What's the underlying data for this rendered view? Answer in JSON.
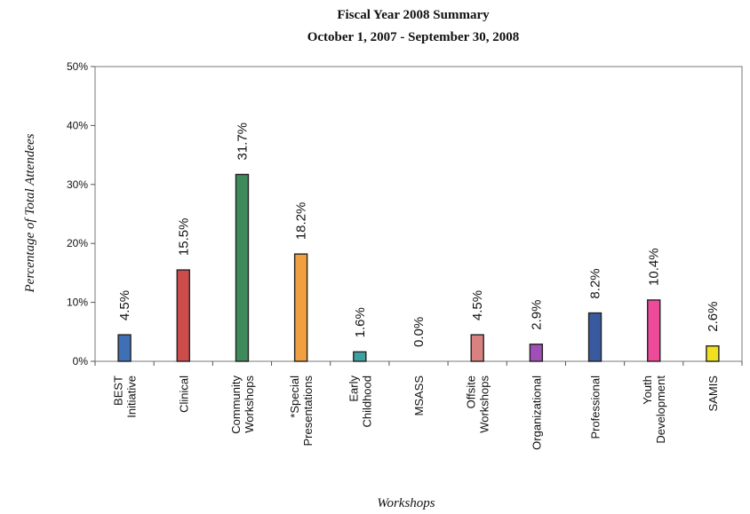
{
  "chart_data": {
    "type": "bar",
    "title": "Fiscal Year 2008 Summary",
    "subtitle": "October 1, 2007 - September 30, 2008",
    "xlabel": "Workshops",
    "ylabel": "Percentage of Total Attendees",
    "ylim": [
      0,
      50
    ],
    "yticks": [
      "0%",
      "10%",
      "20%",
      "30%",
      "40%",
      "50%"
    ],
    "grid": false,
    "legend": "none",
    "categories": [
      [
        "BEST",
        "Initiative"
      ],
      [
        "Clinical"
      ],
      [
        "Community",
        "Workshops"
      ],
      [
        "*Special",
        "Presentations"
      ],
      [
        "Early",
        "Childhood"
      ],
      [
        "MSASS"
      ],
      [
        "Offsite",
        "Workshops"
      ],
      [
        "Organizational"
      ],
      [
        "Professional"
      ],
      [
        "Youth",
        "Development"
      ],
      [
        "SAMIS"
      ]
    ],
    "values": [
      4.5,
      15.5,
      31.7,
      18.2,
      1.6,
      0.0,
      4.5,
      2.9,
      8.2,
      10.4,
      2.6
    ],
    "data_labels": [
      "4.5%",
      "15.5%",
      "31.7%",
      "18.2%",
      "1.6%",
      "0.0%",
      "4.5%",
      "2.9%",
      "8.2%",
      "10.4%",
      "2.6%"
    ],
    "colors": [
      "#3f6fb5",
      "#cc4b4b",
      "#3f8a5a",
      "#f0a040",
      "#3fa0a0",
      "#999999",
      "#d98080",
      "#9f50b5",
      "#3a5aa0",
      "#ee4a9a",
      "#f0e020"
    ]
  }
}
